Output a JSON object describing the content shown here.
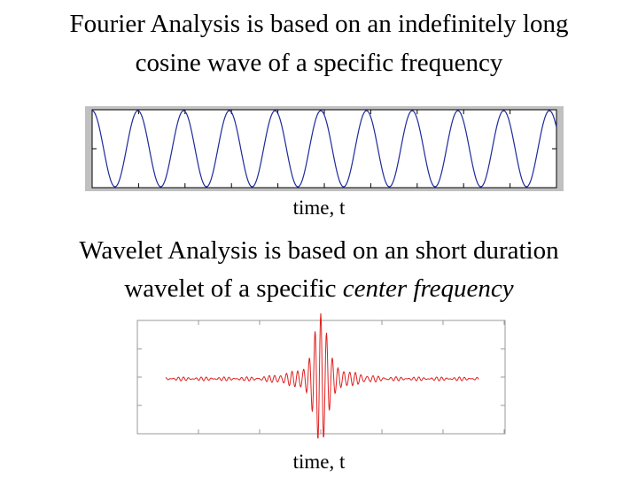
{
  "fourier": {
    "title_lines": [
      "Fourier Analysis is based on an indefinitely long",
      "cosine wave of a specific frequency"
    ],
    "x_label": "time, t"
  },
  "wavelet": {
    "title_line_1": "Wavelet Analysis is based on an short duration",
    "title_line_2": {
      "text": "wavelet of a specific",
      "emphasis": "center frequency"
    },
    "x_label": "time, t"
  }
}
